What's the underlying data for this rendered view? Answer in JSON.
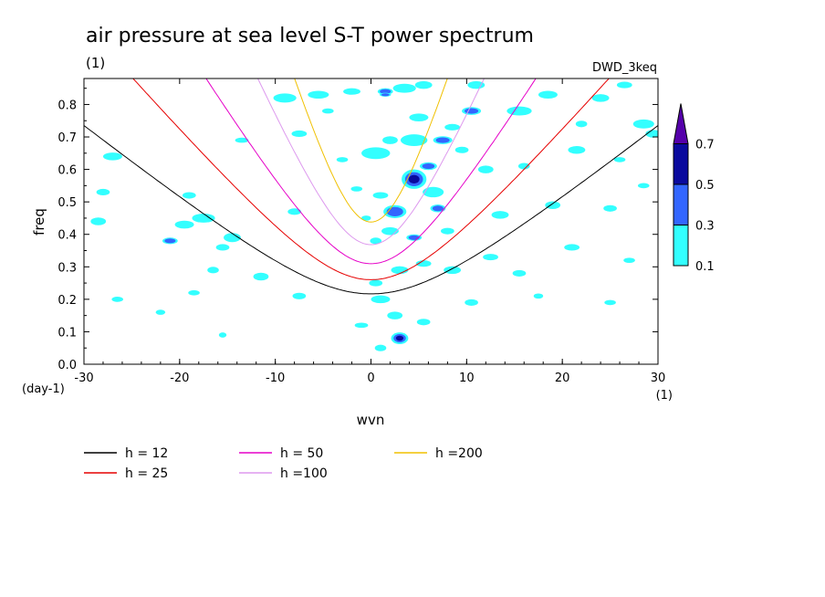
{
  "chart_data": {
    "type": "heatmap",
    "title": "air pressure at sea level S-T power spectrum",
    "unit_label": "(1)",
    "model_label": "DWD_3keq",
    "xlabel": "wvn",
    "x_unit": "(1)",
    "ylabel": "freq",
    "y_unit": "(day-1)",
    "xlim": [
      -30,
      30
    ],
    "ylim": [
      0,
      0.88
    ],
    "x_ticks": [
      "-30",
      "-20",
      "-10",
      "0",
      "10",
      "20",
      "30"
    ],
    "y_ticks": [
      "0.0",
      "0.1",
      "0.2",
      "0.3",
      "0.4",
      "0.5",
      "0.6",
      "0.7",
      "0.8"
    ],
    "colorbar": {
      "levels": [
        "0.1",
        "0.3",
        "0.5",
        "0.7"
      ],
      "colors": [
        "#33ffff",
        "#3366ff",
        "#0a0a9e",
        "#5500aa"
      ]
    },
    "series": [
      {
        "name": "h = 12",
        "h": 12,
        "color": "#000000"
      },
      {
        "name": "h = 25",
        "h": 25,
        "color": "#e60000"
      },
      {
        "name": "h = 50",
        "h": 50,
        "color": "#e600c8"
      },
      {
        "name": "h =100",
        "h": 100,
        "color": "#dd99ee"
      },
      {
        "name": "h =200",
        "h": 200,
        "color": "#f0c000"
      }
    ],
    "patches": [
      [
        1.5,
        0.84,
        0.8,
        0.01,
        2
      ],
      [
        3.5,
        0.85,
        1.2,
        0.014,
        1
      ],
      [
        5.5,
        0.86,
        0.9,
        0.012,
        1
      ],
      [
        1.5,
        0.83,
        0.6,
        0.006,
        2
      ],
      [
        0.5,
        0.65,
        1.5,
        0.018,
        1
      ],
      [
        4.5,
        0.69,
        1.4,
        0.018,
        1
      ],
      [
        7.5,
        0.69,
        1.0,
        0.012,
        2
      ],
      [
        5.0,
        0.76,
        1.0,
        0.012,
        1
      ],
      [
        8.5,
        0.73,
        0.8,
        0.01,
        1
      ],
      [
        10.5,
        0.78,
        1.0,
        0.012,
        2
      ],
      [
        1.0,
        0.52,
        0.8,
        0.01,
        1
      ],
      [
        2.5,
        0.47,
        1.2,
        0.02,
        2
      ],
      [
        4.5,
        0.57,
        1.3,
        0.03,
        3
      ],
      [
        6.5,
        0.53,
        1.1,
        0.016,
        1
      ],
      [
        6.0,
        0.61,
        0.9,
        0.012,
        2
      ],
      [
        2.0,
        0.41,
        0.9,
        0.012,
        1
      ],
      [
        4.5,
        0.39,
        0.8,
        0.01,
        2
      ],
      [
        0.5,
        0.25,
        0.7,
        0.01,
        1
      ],
      [
        3.0,
        0.29,
        0.9,
        0.012,
        1
      ],
      [
        5.5,
        0.31,
        0.8,
        0.01,
        1
      ],
      [
        1.0,
        0.2,
        1.0,
        0.012,
        1
      ],
      [
        2.5,
        0.15,
        0.8,
        0.012,
        1
      ],
      [
        5.5,
        0.13,
        0.7,
        0.01,
        1
      ],
      [
        3.0,
        0.08,
        0.9,
        0.018,
        3
      ],
      [
        1.0,
        0.05,
        0.6,
        0.01,
        1
      ],
      [
        -1.0,
        0.12,
        0.7,
        0.008,
        1
      ],
      [
        -1.5,
        0.54,
        0.6,
        0.008,
        1
      ],
      [
        -21.0,
        0.38,
        0.8,
        0.01,
        2
      ],
      [
        -19.5,
        0.43,
        1.0,
        0.012,
        1
      ],
      [
        -17.5,
        0.45,
        1.2,
        0.014,
        1
      ],
      [
        -19.0,
        0.52,
        0.7,
        0.01,
        1
      ],
      [
        -28.5,
        0.44,
        0.8,
        0.012,
        1
      ],
      [
        -28.0,
        0.53,
        0.7,
        0.01,
        1
      ],
      [
        -27.0,
        0.64,
        1.0,
        0.012,
        1
      ],
      [
        -9.0,
        0.82,
        1.2,
        0.014,
        1
      ],
      [
        -5.5,
        0.83,
        1.1,
        0.012,
        1
      ],
      [
        -2.0,
        0.84,
        0.9,
        0.01,
        1
      ],
      [
        -7.5,
        0.71,
        0.8,
        0.01,
        1
      ],
      [
        -13.5,
        0.69,
        0.7,
        0.008,
        1
      ],
      [
        -14.5,
        0.39,
        0.9,
        0.014,
        1
      ],
      [
        -15.5,
        0.36,
        0.7,
        0.01,
        1
      ],
      [
        -11.5,
        0.27,
        0.8,
        0.012,
        1
      ],
      [
        -18.5,
        0.22,
        0.6,
        0.008,
        1
      ],
      [
        -26.5,
        0.2,
        0.6,
        0.008,
        1
      ],
      [
        -22.0,
        0.16,
        0.5,
        0.008,
        1
      ],
      [
        -15.5,
        0.09,
        0.4,
        0.008,
        1
      ],
      [
        -7.5,
        0.21,
        0.7,
        0.01,
        1
      ],
      [
        -8.0,
        0.47,
        0.7,
        0.01,
        1
      ],
      [
        -16.5,
        0.29,
        0.6,
        0.01,
        1
      ],
      [
        -3.0,
        0.63,
        0.6,
        0.008,
        1
      ],
      [
        -4.5,
        0.78,
        0.6,
        0.008,
        1
      ],
      [
        15.5,
        0.78,
        1.3,
        0.014,
        1
      ],
      [
        18.5,
        0.83,
        1.0,
        0.012,
        1
      ],
      [
        24.0,
        0.82,
        0.9,
        0.012,
        1
      ],
      [
        26.5,
        0.86,
        0.8,
        0.01,
        1
      ],
      [
        28.5,
        0.74,
        1.1,
        0.014,
        1
      ],
      [
        29.5,
        0.71,
        0.8,
        0.012,
        1
      ],
      [
        21.5,
        0.66,
        0.9,
        0.012,
        1
      ],
      [
        26.0,
        0.63,
        0.6,
        0.008,
        1
      ],
      [
        19.0,
        0.49,
        0.8,
        0.012,
        1
      ],
      [
        25.0,
        0.48,
        0.7,
        0.01,
        1
      ],
      [
        28.5,
        0.55,
        0.6,
        0.008,
        1
      ],
      [
        21.0,
        0.36,
        0.8,
        0.01,
        1
      ],
      [
        27.0,
        0.32,
        0.6,
        0.008,
        1
      ],
      [
        13.5,
        0.46,
        0.9,
        0.012,
        1
      ],
      [
        12.5,
        0.33,
        0.8,
        0.01,
        1
      ],
      [
        15.5,
        0.28,
        0.7,
        0.01,
        1
      ],
      [
        17.5,
        0.21,
        0.5,
        0.008,
        1
      ],
      [
        25.0,
        0.19,
        0.6,
        0.008,
        1
      ],
      [
        10.5,
        0.19,
        0.7,
        0.01,
        1
      ],
      [
        8.5,
        0.29,
        0.9,
        0.012,
        1
      ],
      [
        12.0,
        0.6,
        0.8,
        0.012,
        1
      ],
      [
        16.0,
        0.61,
        0.6,
        0.01,
        1
      ],
      [
        9.5,
        0.66,
        0.7,
        0.01,
        1
      ],
      [
        22.0,
        0.74,
        0.6,
        0.01,
        1
      ],
      [
        7.0,
        0.48,
        0.8,
        0.012,
        2
      ],
      [
        8.0,
        0.41,
        0.7,
        0.01,
        1
      ],
      [
        2.0,
        0.69,
        0.8,
        0.012,
        1
      ],
      [
        0.5,
        0.38,
        0.6,
        0.01,
        1
      ],
      [
        -0.5,
        0.45,
        0.5,
        0.008,
        1
      ],
      [
        11.0,
        0.86,
        0.9,
        0.012,
        1
      ]
    ]
  },
  "legend": {
    "items": [
      "h = 12",
      "h = 25",
      "h = 50",
      "h =100",
      "h =200"
    ]
  }
}
